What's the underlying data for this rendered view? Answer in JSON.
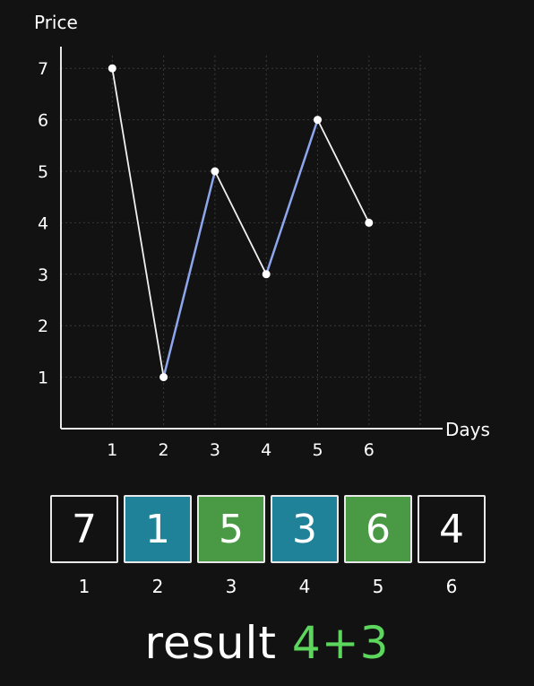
{
  "chart_data": {
    "type": "line",
    "ylabel": "Price",
    "xlabel": "Days",
    "x": [
      1,
      2,
      3,
      4,
      5,
      6
    ],
    "y": [
      7,
      1,
      5,
      3,
      6,
      4
    ],
    "xlim": [
      0,
      7
    ],
    "ylim": [
      0,
      7
    ],
    "yticks": [
      1,
      2,
      3,
      4,
      5,
      6,
      7
    ],
    "xticks": [
      1,
      2,
      3,
      4,
      5,
      6
    ],
    "grid": true,
    "line_color": "#f0f0f0",
    "highlight_color": "#8ea6ee",
    "highlighted_segments": [
      [
        2,
        3
      ],
      [
        4,
        5
      ]
    ]
  },
  "cells": [
    {
      "value": "7",
      "index": "1",
      "color": "#121212"
    },
    {
      "value": "1",
      "index": "2",
      "color": "#1f8299"
    },
    {
      "value": "5",
      "index": "3",
      "color": "#4a9a45"
    },
    {
      "value": "3",
      "index": "4",
      "color": "#1f8299"
    },
    {
      "value": "6",
      "index": "5",
      "color": "#4a9a45"
    },
    {
      "value": "4",
      "index": "6",
      "color": "#121212"
    }
  ],
  "result": {
    "label": "result",
    "value": "4+3"
  }
}
